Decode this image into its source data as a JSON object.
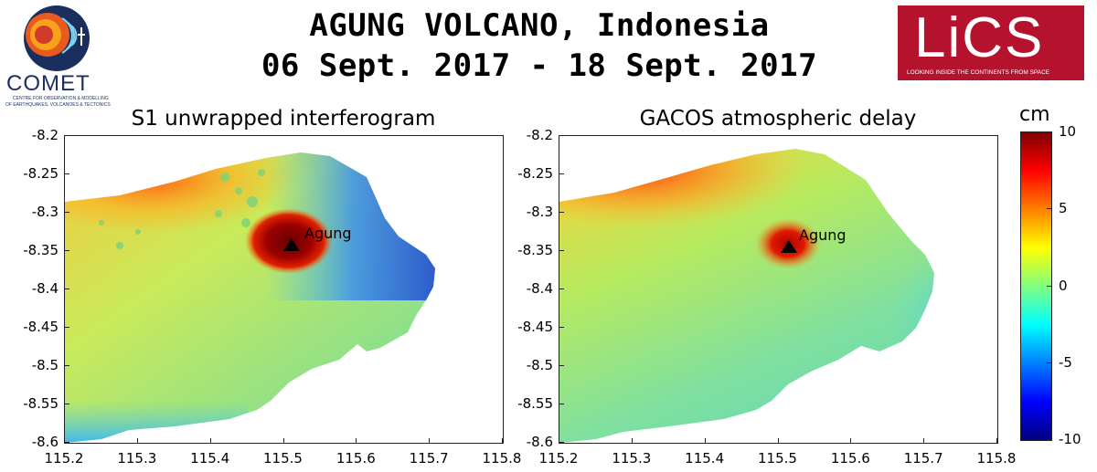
{
  "header": {
    "title_line1": "AGUNG VOLCANO, Indonesia",
    "title_line2": "06 Sept. 2017 - 18 Sept. 2017"
  },
  "logos": {
    "comet_name": "COMET",
    "comet_subtitle_1": "CENTRE FOR OBSERVATION & MODELLING",
    "comet_subtitle_2": "OF EARTHQUAKES, VOLCANOES & TECTONICS",
    "lics_name": "LiCS",
    "lics_tagline": "LOOKING INSIDE THE CONTINENTS FROM SPACE",
    "lics_color": "#b5122e"
  },
  "panels": [
    {
      "title": "S1 unwrapped interferogram",
      "volcano_label": "Agung"
    },
    {
      "title": "GACOS atmospheric delay",
      "volcano_label": "Agung"
    }
  ],
  "axes": {
    "y_ticks": [
      "-8.2",
      "-8.25",
      "-8.3",
      "-8.35",
      "-8.4",
      "-8.45",
      "-8.5",
      "-8.55",
      "-8.6"
    ],
    "x_ticks": [
      "115.2",
      "115.3",
      "115.4",
      "115.5",
      "115.6",
      "115.7",
      "115.8"
    ],
    "x_range": [
      115.2,
      115.8
    ],
    "y_range": [
      -8.6,
      -8.2
    ],
    "volcano_position": {
      "lon": 115.51,
      "lat": -8.343
    }
  },
  "colorbar": {
    "unit": "cm",
    "ticks": [
      "10",
      "5",
      "0",
      "-5",
      "-10"
    ],
    "range": [
      -10,
      10
    ],
    "colormap": "jet"
  }
}
